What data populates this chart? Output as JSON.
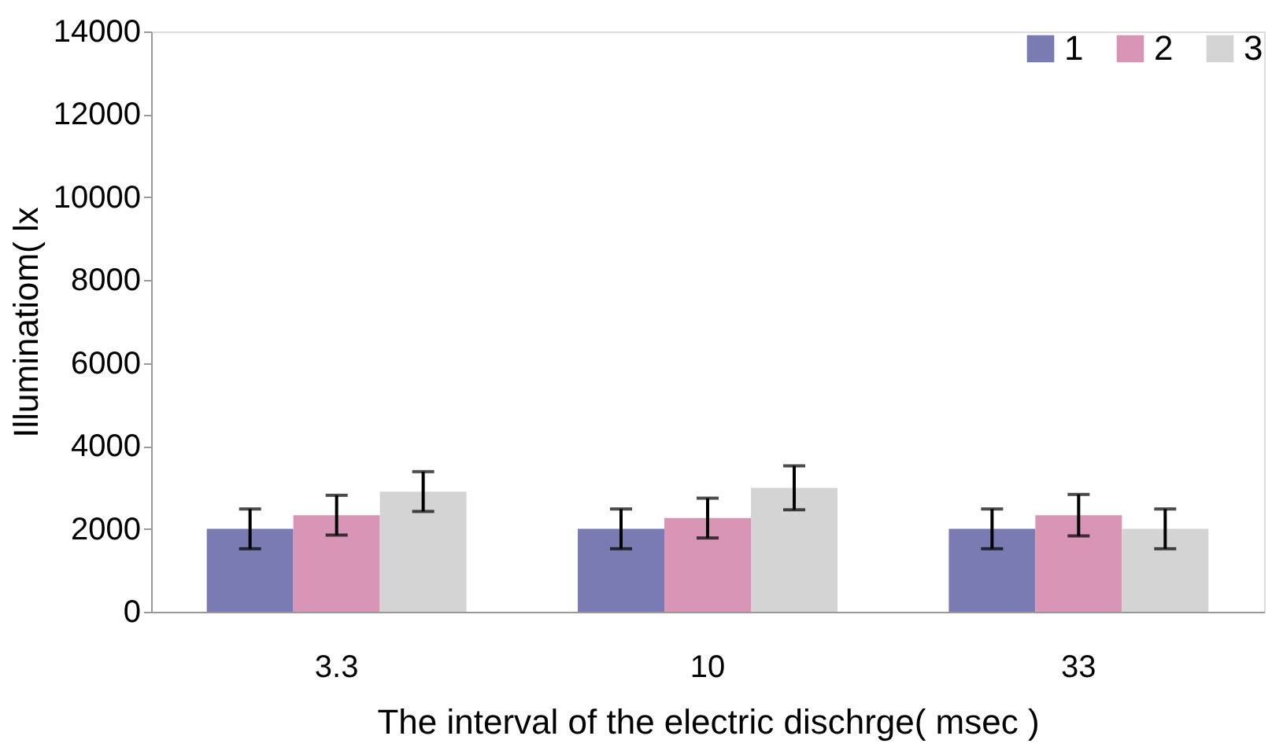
{
  "chart_data": {
    "type": "bar",
    "xlabel": "The interval of the electric dischrge( msec )",
    "ylabel": "Illuminatiom( lx",
    "categories": [
      "3.3",
      "10",
      "33"
    ],
    "series": [
      {
        "name": "1",
        "color": "#7b7bb3",
        "values": [
          2000,
          2000,
          2000
        ],
        "errors": [
          480,
          480,
          480
        ]
      },
      {
        "name": "2",
        "color": "#d995b5",
        "values": [
          2330,
          2260,
          2330
        ],
        "errors": [
          480,
          480,
          500
        ]
      },
      {
        "name": "3",
        "color": "#d4d4d4",
        "values": [
          2900,
          2990,
          2000
        ],
        "errors": [
          480,
          530,
          480
        ]
      }
    ],
    "ylim": [
      0,
      14000
    ],
    "yticks": [
      0,
      2000,
      4000,
      6000,
      8000,
      10000,
      12000,
      14000
    ],
    "grid": false,
    "legend": "top right"
  }
}
